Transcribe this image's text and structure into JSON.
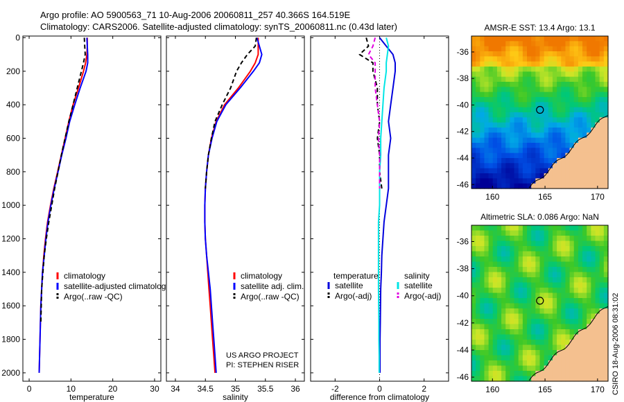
{
  "header": {
    "line1": "Argo profile: AO 5900563_71 10-Aug-2006 20060811_257 40.366S 164.519E",
    "line2": "Climatology: CARS2006. Satellite-adjusted climatology: synTS_20060811.nc (0.43d later)"
  },
  "credit": {
    "project": "US ARGO PROJECT",
    "pi": "PI: STEPHEN RISER",
    "stamp": "CSIRO 18-Aug-2006 08:31:02"
  },
  "colors": {
    "climatology": "#ff0000",
    "satellite": "#0000ff",
    "argo": "#000000",
    "temp_sat": "#0000dd",
    "sal_sat": "#00e5e5",
    "sal_argo": "#e000e0",
    "land": "#f4c08f"
  },
  "chart_data": [
    {
      "id": "temperature",
      "type": "line",
      "xlabel": "temperature",
      "ylabel": "",
      "xlim": [
        -1.5,
        31.5
      ],
      "ylim": [
        2050,
        -10
      ],
      "xticks": [
        "0",
        "10",
        "20",
        "30"
      ],
      "xtick_values": [
        0,
        10,
        20,
        30
      ],
      "yticks": [
        "0",
        "200",
        "400",
        "600",
        "800",
        "1000",
        "1200",
        "1400",
        "1600",
        "1800",
        "2000"
      ],
      "ytick_values": [
        0,
        200,
        400,
        600,
        800,
        1000,
        1200,
        1400,
        1600,
        1800,
        2000
      ],
      "legend": [
        "climatology",
        "satellite-adjusted climatology",
        "Argo(..raw -QC)"
      ],
      "depth": [
        0,
        50,
        100,
        150,
        200,
        300,
        400,
        500,
        600,
        700,
        800,
        900,
        1000,
        1100,
        1200,
        1300,
        1400,
        1500,
        1600,
        1700,
        1800,
        1900,
        2000
      ],
      "series": [
        {
          "name": "climatology",
          "values": [
            13.9,
            13.9,
            13.8,
            13.5,
            13.0,
            11.8,
            10.5,
            9.5,
            8.6,
            7.7,
            6.8,
            5.9,
            5.1,
            4.4,
            3.9,
            3.5,
            3.2,
            3.0,
            2.8,
            2.7,
            2.6,
            2.5,
            2.4
          ]
        },
        {
          "name": "satellite-adjusted climatology",
          "values": [
            13.8,
            13.9,
            14.0,
            14.0,
            13.6,
            12.2,
            10.9,
            9.7,
            8.8,
            7.8,
            6.9,
            6.0,
            5.2,
            4.5,
            4.0,
            3.6,
            3.2,
            3.0,
            2.8,
            2.7,
            2.6,
            2.5,
            2.4
          ]
        },
        {
          "name": "Argo(..raw -QC)",
          "values": [
            13.2,
            13.3,
            13.4,
            13.0,
            12.5,
            11.5,
            10.5,
            9.5,
            8.6,
            7.7,
            6.9,
            6.1,
            5.4,
            4.7,
            4.1,
            3.6,
            3.3,
            3.0,
            2.9,
            2.8,
            null,
            null,
            null
          ]
        }
      ]
    },
    {
      "id": "salinity",
      "type": "line",
      "xlabel": "salinity",
      "ylabel": "",
      "xlim": [
        33.85,
        36.15
      ],
      "ylim": [
        2050,
        -10
      ],
      "xticks": [
        "34",
        "34.5",
        "35",
        "35.5",
        "36"
      ],
      "xtick_values": [
        34,
        34.5,
        35,
        35.5,
        36
      ],
      "legend": [
        "climatology",
        "satellite adj. clim.",
        "Argo(..raw -QC)"
      ],
      "depth": [
        0,
        50,
        100,
        150,
        200,
        300,
        400,
        500,
        600,
        700,
        800,
        900,
        1000,
        1100,
        1200,
        1300,
        1400,
        1500,
        1600,
        1700,
        1800,
        1900,
        2000
      ],
      "series": [
        {
          "name": "climatology",
          "values": [
            35.38,
            35.38,
            35.38,
            35.33,
            35.25,
            35.05,
            34.82,
            34.68,
            34.6,
            34.55,
            34.52,
            34.5,
            34.49,
            34.49,
            34.5,
            34.52,
            34.54,
            34.56,
            34.58,
            34.6,
            34.62,
            34.64,
            34.66
          ]
        },
        {
          "name": "satellite adj. clim.",
          "values": [
            35.36,
            35.4,
            35.44,
            35.4,
            35.3,
            35.08,
            34.84,
            34.69,
            34.61,
            34.55,
            34.52,
            34.5,
            34.49,
            34.49,
            34.5,
            34.52,
            34.55,
            34.58,
            34.6,
            34.62,
            34.64,
            34.66,
            34.68
          ]
        },
        {
          "name": "Argo(..raw -QC)",
          "values": [
            35.35,
            35.33,
            35.2,
            35.1,
            35.02,
            34.92,
            34.78,
            34.66,
            34.6,
            34.55,
            34.52,
            34.5,
            null,
            null,
            null,
            null,
            null,
            null,
            null,
            null,
            null,
            null,
            null
          ]
        }
      ]
    },
    {
      "id": "difference",
      "type": "line",
      "xlabel": "difference from climatology",
      "ylabel": "",
      "xlim": [
        -3.1,
        3.1
      ],
      "ylim": [
        2050,
        -10
      ],
      "xticks": [
        "-2",
        "0",
        "2"
      ],
      "xtick_values": [
        -2,
        0,
        2
      ],
      "legend_headers": [
        "temperature",
        "salinity"
      ],
      "legend": [
        "satellite",
        "Argo(-adj)",
        "satellite",
        "Argo(-adj)"
      ],
      "depth": [
        0,
        50,
        100,
        150,
        200,
        300,
        400,
        500,
        600,
        700,
        800,
        900,
        1000,
        1100,
        1200,
        1300,
        1400,
        1500,
        1600,
        1700,
        1800,
        1900,
        2000
      ],
      "series": [
        {
          "name": "temperature satellite",
          "values": [
            0.0,
            0.3,
            0.6,
            0.7,
            0.7,
            0.6,
            0.5,
            0.4,
            0.5,
            0.4,
            0.4,
            0.4,
            0.3,
            0.2,
            0.15,
            0.1,
            0.08,
            0.05,
            0.04,
            0.03,
            0.02,
            0.02,
            0.02
          ]
        },
        {
          "name": "temperature Argo(-adj)",
          "values": [
            -0.6,
            -0.5,
            -0.9,
            -0.3,
            -0.3,
            -0.1,
            -0.1,
            0.0,
            -0.1,
            0.0,
            0.0,
            0.1,
            null,
            null,
            null,
            null,
            null,
            null,
            null,
            null,
            null,
            null,
            null
          ]
        },
        {
          "name": "salinity satellite",
          "values": [
            0.3,
            0.4,
            0.35,
            0.3,
            0.3,
            0.2,
            0.15,
            0.1,
            0.05,
            0.05,
            0.0,
            0.0,
            0.0,
            -0.05,
            -0.05,
            -0.05,
            -0.05,
            -0.05,
            -0.04,
            -0.03,
            -0.03,
            -0.02,
            -0.02
          ]
        },
        {
          "name": "salinity Argo(-adj)",
          "values": [
            -0.2,
            -0.3,
            -0.5,
            -0.2,
            -0.2,
            -0.2,
            -0.1,
            0.0,
            -0.05,
            0.0,
            0.0,
            0.0,
            null,
            null,
            null,
            null,
            null,
            null,
            null,
            null,
            null,
            null,
            null
          ]
        }
      ]
    },
    {
      "id": "sst-map",
      "type": "heatmap",
      "title": "AMSR-E SST: 13.4  Argo: 13.1",
      "xlim": [
        158,
        171
      ],
      "ylim": [
        -46.3,
        -34.8
      ],
      "xticks": [
        "160",
        "165",
        "170"
      ],
      "xtick_values": [
        160,
        165,
        170
      ],
      "yticks": [
        "-36",
        "-38",
        "-40",
        "-42",
        "-44",
        "-46"
      ],
      "ytick_values": [
        -36,
        -38,
        -40,
        -42,
        -44,
        -46
      ],
      "marker": {
        "lon": 164.519,
        "lat": -40.366
      }
    },
    {
      "id": "sla-map",
      "type": "heatmap",
      "title": "Altimetric SLA: 0.086  Argo: NaN",
      "xlim": [
        158,
        171
      ],
      "ylim": [
        -46.3,
        -34.8
      ],
      "xticks": [
        "160",
        "165",
        "170"
      ],
      "xtick_values": [
        160,
        165,
        170
      ],
      "yticks": [
        "-36",
        "-38",
        "-40",
        "-42",
        "-44",
        "-46"
      ],
      "ytick_values": [
        -36,
        -38,
        -40,
        -42,
        -44,
        -46
      ],
      "marker": {
        "lon": 164.519,
        "lat": -40.366
      }
    }
  ]
}
